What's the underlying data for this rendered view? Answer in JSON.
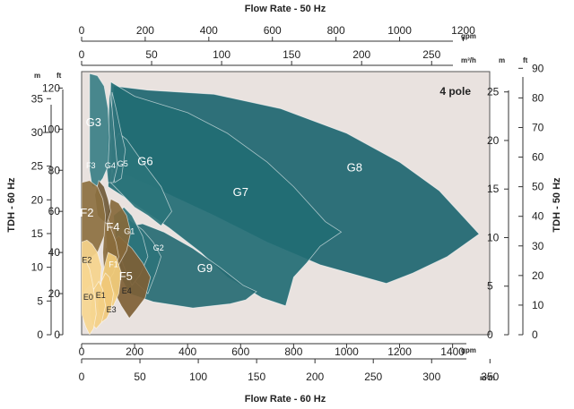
{
  "chart_data": {
    "type": "area",
    "top_title": "Flow Rate - 50 Hz",
    "bottom_title": "Flow Rate - 60 Hz",
    "left_title": "TDH - 60 Hz",
    "right_title": "TDH - 50 Hz",
    "annotation": "4 pole",
    "units": {
      "top_outer": "gpm",
      "top_inner": "m³/h",
      "bottom_outer": "gpm",
      "bottom_inner": "m³/h",
      "left_m": "m",
      "left_ft": "ft",
      "right_m": "m",
      "right_ft": "ft"
    },
    "axes": {
      "top_gpm_ticks": [
        "0",
        "200",
        "400",
        "600",
        "800",
        "1000",
        "1200"
      ],
      "top_m3h_ticks": [
        "0",
        "50",
        "100",
        "150",
        "200",
        "250"
      ],
      "bottom_gpm_ticks": [
        "0",
        "200",
        "400",
        "600",
        "800",
        "1000",
        "1200",
        "1400"
      ],
      "bottom_m3h_ticks": [
        "0",
        "50",
        "100",
        "150",
        "200",
        "250",
        "300",
        "350"
      ],
      "left_m_ticks": [
        "0",
        "5",
        "10",
        "15",
        "20",
        "25",
        "30",
        "35"
      ],
      "left_ft_ticks": [
        "0",
        "20",
        "40",
        "60",
        "80",
        "100",
        "120"
      ],
      "right_m_ticks": [
        "0",
        "5",
        "10",
        "15",
        "20",
        "25"
      ],
      "right_ft_ticks": [
        "0",
        "10",
        "20",
        "30",
        "40",
        "50",
        "60",
        "70",
        "80",
        "90"
      ],
      "x_gpm_60hz_range": [
        0,
        1540
      ],
      "y_ft_60hz_range": [
        0,
        128
      ]
    },
    "series": [
      {
        "name": "G8",
        "color": "#1d6670",
        "points": [
          [
            110,
            78
          ],
          [
            120,
            121
          ],
          [
            250,
            119
          ],
          [
            500,
            117
          ],
          [
            750,
            110
          ],
          [
            1000,
            98
          ],
          [
            1200,
            84
          ],
          [
            1350,
            70
          ],
          [
            1500,
            49
          ],
          [
            1380,
            38
          ],
          [
            1250,
            30
          ],
          [
            1150,
            25
          ],
          [
            900,
            34
          ],
          [
            700,
            45
          ],
          [
            500,
            58
          ],
          [
            300,
            70
          ],
          [
            180,
            77
          ]
        ]
      },
      {
        "name": "G7",
        "color": "#226c74",
        "points": [
          [
            100,
            72
          ],
          [
            110,
            123
          ],
          [
            200,
            116
          ],
          [
            400,
            108
          ],
          [
            550,
            98
          ],
          [
            700,
            84
          ],
          [
            800,
            72
          ],
          [
            920,
            55
          ],
          [
            980,
            50
          ],
          [
            900,
            43
          ],
          [
            850,
            35
          ],
          [
            800,
            28
          ],
          [
            770,
            14
          ],
          [
            680,
            18
          ],
          [
            550,
            28
          ],
          [
            450,
            40
          ],
          [
            330,
            52
          ],
          [
            240,
            60
          ],
          [
            160,
            67
          ]
        ]
      },
      {
        "name": "G6",
        "color": "#2a7479",
        "points": [
          [
            110,
            74
          ],
          [
            120,
            92
          ],
          [
            140,
            98
          ],
          [
            170,
            95
          ],
          [
            230,
            84
          ],
          [
            300,
            72
          ],
          [
            340,
            60
          ],
          [
            300,
            53
          ],
          [
            250,
            58
          ],
          [
            200,
            62
          ],
          [
            140,
            70
          ]
        ]
      },
      {
        "name": "G9",
        "color": "#266b73",
        "points": [
          [
            150,
            52
          ],
          [
            230,
            54
          ],
          [
            310,
            50
          ],
          [
            420,
            42
          ],
          [
            520,
            33
          ],
          [
            610,
            24
          ],
          [
            660,
            21
          ],
          [
            620,
            17
          ],
          [
            560,
            15
          ],
          [
            420,
            13
          ],
          [
            270,
            16
          ],
          [
            180,
            20
          ],
          [
            140,
            30
          ]
        ]
      },
      {
        "name": "G2",
        "color": "#2c737a",
        "points": [
          [
            120,
            54
          ],
          [
            180,
            56
          ],
          [
            230,
            51
          ],
          [
            270,
            45
          ],
          [
            300,
            38
          ],
          [
            280,
            30
          ],
          [
            250,
            20
          ],
          [
            200,
            26
          ],
          [
            150,
            36
          ]
        ]
      },
      {
        "name": "G1",
        "color": "#2d747b",
        "points": [
          [
            120,
            58
          ],
          [
            160,
            62
          ],
          [
            190,
            58
          ],
          [
            230,
            48
          ],
          [
            250,
            38
          ],
          [
            220,
            29
          ],
          [
            190,
            24
          ],
          [
            160,
            33
          ],
          [
            130,
            44
          ]
        ]
      },
      {
        "name": "G5",
        "color": "#2f747c",
        "points": [
          [
            110,
            84
          ],
          [
            115,
            118
          ],
          [
            130,
            110
          ],
          [
            150,
            98
          ],
          [
            165,
            90
          ],
          [
            150,
            76
          ],
          [
            125,
            74
          ]
        ]
      },
      {
        "name": "G4",
        "color": "#35787f",
        "points": [
          [
            95,
            80
          ],
          [
            105,
            119
          ],
          [
            115,
            110
          ],
          [
            125,
            96
          ],
          [
            135,
            82
          ],
          [
            120,
            74
          ],
          [
            100,
            74
          ]
        ]
      },
      {
        "name": "G3",
        "color": "#3a7f86",
        "points": [
          [
            30,
            80
          ],
          [
            30,
            127
          ],
          [
            60,
            126
          ],
          [
            85,
            121
          ],
          [
            100,
            110
          ],
          [
            105,
            96
          ],
          [
            100,
            82
          ],
          [
            80,
            76
          ],
          [
            55,
            72
          ],
          [
            40,
            72
          ]
        ]
      },
      {
        "name": "F5",
        "color": "#7e6035",
        "points": [
          [
            90,
            42
          ],
          [
            140,
            48
          ],
          [
            190,
            42
          ],
          [
            230,
            35
          ],
          [
            260,
            28
          ],
          [
            240,
            18
          ],
          [
            205,
            12
          ],
          [
            180,
            8
          ],
          [
            150,
            14
          ],
          [
            110,
            24
          ]
        ]
      },
      {
        "name": "F4",
        "color": "#87693b",
        "points": [
          [
            90,
            52
          ],
          [
            110,
            66
          ],
          [
            140,
            64
          ],
          [
            170,
            58
          ],
          [
            185,
            50
          ],
          [
            170,
            41
          ],
          [
            140,
            34
          ],
          [
            110,
            34
          ],
          [
            95,
            42
          ]
        ]
      },
      {
        "name": "F1",
        "color": "#8a6d3d",
        "points": [
          [
            80,
            40
          ],
          [
            90,
            60
          ],
          [
            110,
            52
          ],
          [
            130,
            45
          ],
          [
            140,
            38
          ],
          [
            120,
            30
          ],
          [
            100,
            26
          ],
          [
            85,
            30
          ]
        ]
      },
      {
        "name": "F3",
        "color": "#6f5a38",
        "points": [
          [
            50,
            68
          ],
          [
            65,
            75
          ],
          [
            85,
            72
          ],
          [
            100,
            66
          ],
          [
            110,
            60
          ],
          [
            95,
            54
          ],
          [
            75,
            56
          ],
          [
            60,
            58
          ]
        ]
      },
      {
        "name": "F2",
        "color": "#8c7040",
        "points": [
          [
            0,
            36
          ],
          [
            0,
            74
          ],
          [
            30,
            75
          ],
          [
            60,
            72
          ],
          [
            80,
            66
          ],
          [
            90,
            58
          ],
          [
            85,
            48
          ],
          [
            60,
            40
          ],
          [
            40,
            38
          ]
        ]
      },
      {
        "name": "E4",
        "color": "#f2cd7c",
        "points": [
          [
            70,
            20
          ],
          [
            80,
            30
          ],
          [
            100,
            40
          ],
          [
            130,
            38
          ],
          [
            150,
            30
          ],
          [
            140,
            20
          ],
          [
            120,
            14
          ],
          [
            95,
            14
          ]
        ]
      },
      {
        "name": "E3",
        "color": "#f0c878",
        "points": [
          [
            60,
            14
          ],
          [
            75,
            26
          ],
          [
            90,
            30
          ],
          [
            105,
            28
          ],
          [
            120,
            20
          ],
          [
            110,
            12
          ],
          [
            95,
            8
          ],
          [
            75,
            6
          ]
        ]
      },
      {
        "name": "E2",
        "color": "#f5d48c",
        "points": [
          [
            0,
            20
          ],
          [
            0,
            45
          ],
          [
            20,
            46
          ],
          [
            40,
            44
          ],
          [
            60,
            40
          ],
          [
            75,
            33
          ],
          [
            70,
            24
          ],
          [
            50,
            22
          ],
          [
            30,
            24
          ],
          [
            10,
            21
          ]
        ]
      },
      {
        "name": "E1",
        "color": "#f3cf84",
        "points": [
          [
            30,
            10
          ],
          [
            45,
            22
          ],
          [
            65,
            26
          ],
          [
            80,
            22
          ],
          [
            90,
            14
          ],
          [
            75,
            6
          ],
          [
            55,
            3
          ],
          [
            40,
            5
          ]
        ]
      },
      {
        "name": "E0",
        "color": "#f6d690",
        "points": [
          [
            0,
            10
          ],
          [
            0,
            35
          ],
          [
            15,
            36
          ],
          [
            30,
            32
          ],
          [
            40,
            26
          ],
          [
            50,
            18
          ],
          [
            55,
            10
          ],
          [
            45,
            3
          ],
          [
            30,
            0
          ],
          [
            15,
            4
          ]
        ]
      }
    ],
    "labels": [
      {
        "text": "G8",
        "x": 1030,
        "y": 81
      },
      {
        "text": "G7",
        "x": 600,
        "y": 69
      },
      {
        "text": "G6",
        "x": 240,
        "y": 84
      },
      {
        "text": "G3",
        "x": 45,
        "y": 103
      },
      {
        "text": "G5",
        "x": 155,
        "y": 83
      },
      {
        "text": "G4",
        "x": 108,
        "y": 82
      },
      {
        "text": "F3",
        "x": 35,
        "y": 82
      },
      {
        "text": "F2",
        "x": 20,
        "y": 59
      },
      {
        "text": "F4",
        "x": 118,
        "y": 52
      },
      {
        "text": "G1",
        "x": 180,
        "y": 50
      },
      {
        "text": "G2",
        "x": 290,
        "y": 42
      },
      {
        "text": "G9",
        "x": 465,
        "y": 32
      },
      {
        "text": "F1",
        "x": 120,
        "y": 34
      },
      {
        "text": "F5",
        "x": 167,
        "y": 28
      },
      {
        "text": "E2",
        "x": 20,
        "y": 36
      },
      {
        "text": "E1",
        "x": 72,
        "y": 19
      },
      {
        "text": "E0",
        "x": 25,
        "y": 18
      },
      {
        "text": "E4",
        "x": 170,
        "y": 21
      },
      {
        "text": "E3",
        "x": 112,
        "y": 12
      }
    ]
  }
}
